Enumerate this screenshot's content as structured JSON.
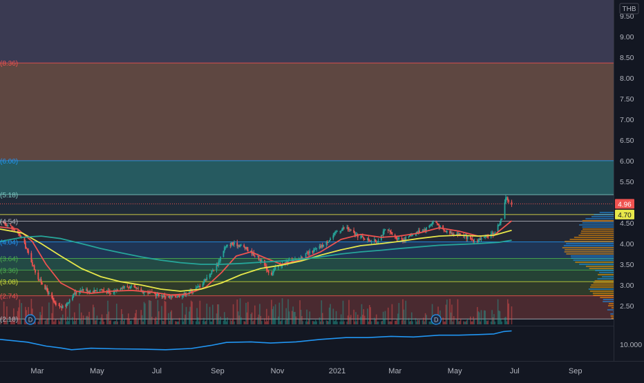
{
  "chart_data": {
    "type": "line",
    "currency": "THB",
    "price_axis": {
      "ylim": [
        2.05,
        9.88
      ],
      "ticks": [
        "9.50",
        "9.00",
        "8.50",
        "8.00",
        "7.50",
        "7.00",
        "6.50",
        "6.00",
        "5.50",
        "5.00",
        "4.50",
        "4.00",
        "3.50",
        "3.00",
        "2.50"
      ]
    },
    "osc_axis": {
      "ticks": [
        "10.000"
      ]
    },
    "time_axis": {
      "range": [
        "2020-01-23",
        "2021-10-10"
      ],
      "ticks": [
        {
          "date": "2020-03-01",
          "label": "Mar"
        },
        {
          "date": "2020-05-01",
          "label": "May"
        },
        {
          "date": "2020-07-01",
          "label": "Jul"
        },
        {
          "date": "2020-09-01",
          "label": "Sep"
        },
        {
          "date": "2020-11-01",
          "label": "Nov"
        },
        {
          "date": "2021-01-01",
          "label": "2021"
        },
        {
          "date": "2021-03-01",
          "label": "Mar"
        },
        {
          "date": "2021-05-01",
          "label": "May"
        },
        {
          "date": "2021-07-01",
          "label": "Jul"
        },
        {
          "date": "2021-09-01",
          "label": "Sep"
        }
      ]
    },
    "last_price": {
      "value": 4.96,
      "label": "4.96",
      "color": "#ef5350"
    },
    "line_label": {
      "value": 4.7,
      "label": "4.70",
      "color": "#e8e84a"
    },
    "levels": [
      {
        "value": 8.36,
        "label": "(8.36)",
        "color": "#ef5350"
      },
      {
        "value": 6.0,
        "label": "(6.00)",
        "color": "#2196f3"
      },
      {
        "value": 5.18,
        "label": "(5.18)",
        "color": "#80cbc4"
      },
      {
        "value": 4.7,
        "label": "",
        "color": "#e8e84a"
      },
      {
        "value": 4.54,
        "label": "(4.54)",
        "color": "#b2b5be"
      },
      {
        "value": 4.04,
        "label": "(4.04)",
        "color": "#2196f3"
      },
      {
        "value": 3.64,
        "label": "(3.64)",
        "color": "#4caf50"
      },
      {
        "value": 3.36,
        "label": "(3.36)",
        "color": "#4caf50"
      },
      {
        "value": 3.08,
        "label": "(3.08)",
        "color": "#cddc39"
      },
      {
        "value": 2.74,
        "label": "(2.74)",
        "color": "#ef5350"
      },
      {
        "value": 2.18,
        "label": "(2.18)",
        "color": "#b2b5be"
      }
    ],
    "zones": [
      {
        "from": 8.36,
        "to": 9.88,
        "color": "#3a3a52"
      },
      {
        "from": 6.0,
        "to": 8.36,
        "color": "#5e4741"
      },
      {
        "from": 5.18,
        "to": 6.0,
        "color": "#265a60"
      },
      {
        "from": 4.7,
        "to": 5.18,
        "color": "#1f2a38"
      },
      {
        "from": 4.04,
        "to": 4.7,
        "color": "#232733"
      },
      {
        "from": 3.64,
        "to": 4.04,
        "color": "#1f3555"
      },
      {
        "from": 3.36,
        "to": 3.64,
        "color": "#234a45"
      },
      {
        "from": 3.08,
        "to": 3.36,
        "color": "#254235"
      },
      {
        "from": 2.74,
        "to": 3.08,
        "color": "#2f3b2a"
      },
      {
        "from": 2.18,
        "to": 2.74,
        "color": "#4a2a30"
      }
    ],
    "series": [
      {
        "key": "price",
        "color": "#26a69a",
        "points": [
          [
            "2020-01-23",
            4.5
          ],
          [
            "2020-02-01",
            4.45
          ],
          [
            "2020-02-08",
            4.3
          ],
          [
            "2020-02-15",
            4.1
          ],
          [
            "2020-02-22",
            3.7
          ],
          [
            "2020-03-01",
            3.2
          ],
          [
            "2020-03-10",
            2.9
          ],
          [
            "2020-03-20",
            2.5
          ],
          [
            "2020-03-28",
            2.45
          ],
          [
            "2020-04-06",
            2.75
          ],
          [
            "2020-04-15",
            2.9
          ],
          [
            "2020-04-25",
            2.85
          ],
          [
            "2020-05-05",
            2.9
          ],
          [
            "2020-05-15",
            2.8
          ],
          [
            "2020-05-25",
            2.95
          ],
          [
            "2020-06-05",
            2.95
          ],
          [
            "2020-06-15",
            2.85
          ],
          [
            "2020-06-25",
            2.8
          ],
          [
            "2020-07-05",
            2.75
          ],
          [
            "2020-07-15",
            2.7
          ],
          [
            "2020-07-25",
            2.75
          ],
          [
            "2020-08-05",
            2.85
          ],
          [
            "2020-08-15",
            3.0
          ],
          [
            "2020-08-25",
            3.3
          ],
          [
            "2020-09-01",
            3.5
          ],
          [
            "2020-09-08",
            3.9
          ],
          [
            "2020-09-15",
            4.0
          ],
          [
            "2020-09-25",
            3.95
          ],
          [
            "2020-10-05",
            3.8
          ],
          [
            "2020-10-15",
            3.6
          ],
          [
            "2020-10-25",
            3.25
          ],
          [
            "2020-11-01",
            3.45
          ],
          [
            "2020-11-10",
            3.55
          ],
          [
            "2020-11-20",
            3.6
          ],
          [
            "2020-12-01",
            3.75
          ],
          [
            "2020-12-10",
            3.85
          ],
          [
            "2020-12-20",
            4.0
          ],
          [
            "2021-01-01",
            4.3
          ],
          [
            "2021-01-10",
            4.4
          ],
          [
            "2021-01-20",
            4.2
          ],
          [
            "2021-02-01",
            4.1
          ],
          [
            "2021-02-10",
            4.05
          ],
          [
            "2021-02-20",
            4.35
          ],
          [
            "2021-03-01",
            4.15
          ],
          [
            "2021-03-10",
            4.1
          ],
          [
            "2021-03-20",
            4.25
          ],
          [
            "2021-04-01",
            4.35
          ],
          [
            "2021-04-10",
            4.55
          ],
          [
            "2021-04-20",
            4.3
          ],
          [
            "2021-05-01",
            4.25
          ],
          [
            "2021-05-10",
            4.2
          ],
          [
            "2021-05-20",
            4.05
          ],
          [
            "2021-06-01",
            4.15
          ],
          [
            "2021-06-10",
            4.25
          ],
          [
            "2021-06-18",
            4.6
          ],
          [
            "2021-06-22",
            5.1
          ],
          [
            "2021-06-28",
            4.96
          ]
        ]
      },
      {
        "key": "ma-short",
        "color": "#ef5350",
        "points": [
          [
            "2020-01-23",
            4.4
          ],
          [
            "2020-02-10",
            4.35
          ],
          [
            "2020-02-25",
            4.05
          ],
          [
            "2020-03-10",
            3.5
          ],
          [
            "2020-03-25",
            3.05
          ],
          [
            "2020-04-10",
            2.85
          ],
          [
            "2020-04-25",
            2.8
          ],
          [
            "2020-05-15",
            2.85
          ],
          [
            "2020-06-05",
            2.87
          ],
          [
            "2020-06-25",
            2.83
          ],
          [
            "2020-07-15",
            2.76
          ],
          [
            "2020-08-01",
            2.78
          ],
          [
            "2020-08-20",
            2.95
          ],
          [
            "2020-09-05",
            3.3
          ],
          [
            "2020-09-20",
            3.7
          ],
          [
            "2020-10-05",
            3.8
          ],
          [
            "2020-10-20",
            3.65
          ],
          [
            "2020-11-05",
            3.5
          ],
          [
            "2020-11-25",
            3.6
          ],
          [
            "2020-12-15",
            3.8
          ],
          [
            "2021-01-05",
            4.1
          ],
          [
            "2021-01-25",
            4.22
          ],
          [
            "2021-02-15",
            4.15
          ],
          [
            "2021-03-05",
            4.18
          ],
          [
            "2021-03-25",
            4.25
          ],
          [
            "2021-04-15",
            4.38
          ],
          [
            "2021-05-05",
            4.3
          ],
          [
            "2021-05-25",
            4.18
          ],
          [
            "2021-06-10",
            4.2
          ],
          [
            "2021-06-28",
            4.55
          ]
        ]
      },
      {
        "key": "ma-mid",
        "color": "#e8e84a",
        "points": [
          [
            "2020-01-23",
            4.35
          ],
          [
            "2020-02-15",
            4.25
          ],
          [
            "2020-03-05",
            4.0
          ],
          [
            "2020-03-25",
            3.7
          ],
          [
            "2020-04-15",
            3.4
          ],
          [
            "2020-05-05",
            3.2
          ],
          [
            "2020-05-25",
            3.08
          ],
          [
            "2020-06-15",
            3.0
          ],
          [
            "2020-07-05",
            2.9
          ],
          [
            "2020-07-25",
            2.85
          ],
          [
            "2020-08-15",
            2.9
          ],
          [
            "2020-09-05",
            3.05
          ],
          [
            "2020-09-25",
            3.25
          ],
          [
            "2020-10-15",
            3.4
          ],
          [
            "2020-11-05",
            3.48
          ],
          [
            "2020-11-25",
            3.58
          ],
          [
            "2020-12-15",
            3.72
          ],
          [
            "2021-01-05",
            3.85
          ],
          [
            "2021-01-25",
            3.95
          ],
          [
            "2021-02-15",
            4.0
          ],
          [
            "2021-03-05",
            4.05
          ],
          [
            "2021-03-25",
            4.12
          ],
          [
            "2021-04-15",
            4.18
          ],
          [
            "2021-05-05",
            4.2
          ],
          [
            "2021-05-25",
            4.18
          ],
          [
            "2021-06-10",
            4.2
          ],
          [
            "2021-06-28",
            4.32
          ]
        ]
      },
      {
        "key": "ma-long",
        "color": "#26a69a",
        "points": [
          [
            "2020-01-23",
            4.05
          ],
          [
            "2020-02-15",
            4.15
          ],
          [
            "2020-03-05",
            4.18
          ],
          [
            "2020-03-25",
            4.12
          ],
          [
            "2020-04-15",
            4.0
          ],
          [
            "2020-05-05",
            3.88
          ],
          [
            "2020-05-25",
            3.78
          ],
          [
            "2020-06-15",
            3.68
          ],
          [
            "2020-07-05",
            3.6
          ],
          [
            "2020-07-25",
            3.54
          ],
          [
            "2020-08-15",
            3.5
          ],
          [
            "2020-09-05",
            3.5
          ],
          [
            "2020-09-25",
            3.52
          ],
          [
            "2020-10-15",
            3.55
          ],
          [
            "2020-11-05",
            3.58
          ],
          [
            "2020-11-25",
            3.62
          ],
          [
            "2020-12-15",
            3.68
          ],
          [
            "2021-01-05",
            3.75
          ],
          [
            "2021-01-25",
            3.8
          ],
          [
            "2021-02-15",
            3.84
          ],
          [
            "2021-03-05",
            3.88
          ],
          [
            "2021-03-25",
            3.92
          ],
          [
            "2021-04-15",
            3.96
          ],
          [
            "2021-05-05",
            3.98
          ],
          [
            "2021-05-25",
            4.0
          ],
          [
            "2021-06-15",
            4.03
          ],
          [
            "2021-06-28",
            4.08
          ]
        ]
      },
      {
        "key": "oscillator",
        "color": "#2196f3",
        "points": [
          [
            "2020-01-23",
            0.64
          ],
          [
            "2020-02-20",
            0.55
          ],
          [
            "2020-03-10",
            0.42
          ],
          [
            "2020-03-25",
            0.36
          ],
          [
            "2020-04-05",
            0.3
          ],
          [
            "2020-04-25",
            0.35
          ],
          [
            "2020-05-20",
            0.33
          ],
          [
            "2020-06-15",
            0.32
          ],
          [
            "2020-07-10",
            0.3
          ],
          [
            "2020-08-05",
            0.34
          ],
          [
            "2020-08-25",
            0.44
          ],
          [
            "2020-09-10",
            0.54
          ],
          [
            "2020-10-05",
            0.56
          ],
          [
            "2020-10-25",
            0.52
          ],
          [
            "2020-11-20",
            0.56
          ],
          [
            "2020-12-15",
            0.64
          ],
          [
            "2021-01-10",
            0.7
          ],
          [
            "2021-02-01",
            0.7
          ],
          [
            "2021-02-25",
            0.74
          ],
          [
            "2021-03-20",
            0.72
          ],
          [
            "2021-04-15",
            0.78
          ],
          [
            "2021-05-05",
            0.78
          ],
          [
            "2021-05-25",
            0.8
          ],
          [
            "2021-06-10",
            0.82
          ],
          [
            "2021-06-20",
            0.9
          ],
          [
            "2021-06-28",
            0.92
          ]
        ]
      }
    ],
    "dividend_markers": [
      {
        "date": "2020-02-23",
        "label": "D"
      },
      {
        "date": "2021-04-12",
        "label": "D"
      }
    ]
  }
}
